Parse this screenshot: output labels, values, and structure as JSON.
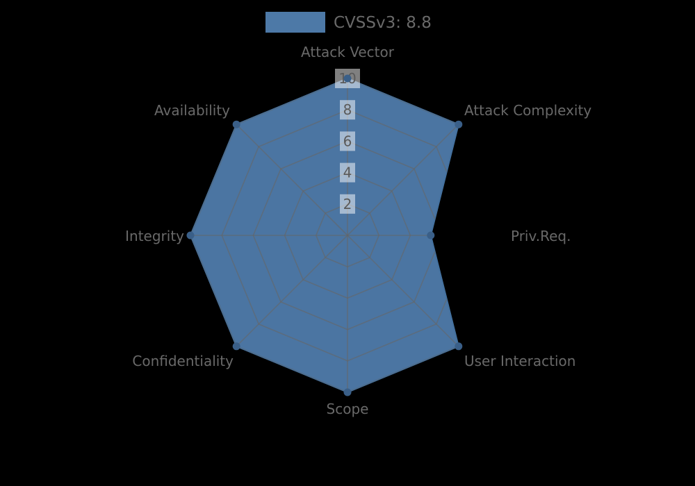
{
  "legend": {
    "label": "CVSSv3: 8.8"
  },
  "chart_data": {
    "type": "radar",
    "title": "CVSSv3: 8.8",
    "legend_entries": [
      "CVSSv3: 8.8"
    ],
    "legend_position": "top",
    "axes": [
      "Attack Vector",
      "Attack Complexity",
      "Priv.Req.",
      "User Interaction",
      "Scope",
      "Confidentiality",
      "Integrity",
      "Availability"
    ],
    "series": [
      {
        "name": "CVSSv3: 8.8",
        "values": [
          10,
          10,
          5.3,
          10,
          10,
          10,
          10,
          10
        ]
      }
    ],
    "scale": {
      "min": 0,
      "max": 10,
      "tick_values": [
        2,
        4,
        6,
        8,
        10
      ],
      "tick_labels": [
        "2",
        "4",
        "6",
        "8",
        "10"
      ]
    },
    "grid": true,
    "grid_rings": 5,
    "colors": {
      "fill": "#4d79a7",
      "outline": "#44719f",
      "dot": "#3a5f88",
      "grid_line": "#666666",
      "axis_label": "#696969",
      "tick_text": "#5a5a5a",
      "tick_box": "#ffffff",
      "legend_text": "#696969",
      "background": "#000000"
    }
  }
}
